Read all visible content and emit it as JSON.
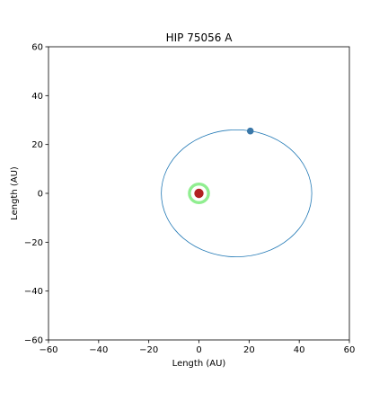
{
  "chart_data": {
    "type": "scatter",
    "title": "HIP 75056 A",
    "xlabel": "Length (AU)",
    "ylabel": "Length (AU)",
    "xlim": [
      -60,
      60
    ],
    "ylim": [
      -60,
      60
    ],
    "xticks": [
      -60,
      -40,
      -20,
      0,
      20,
      40,
      60
    ],
    "yticks": [
      -60,
      -40,
      -20,
      0,
      20,
      40,
      60
    ],
    "xtick_labels": [
      "−60",
      "−40",
      "−20",
      "0",
      "20",
      "40",
      "60"
    ],
    "ytick_labels": [
      "−60",
      "−40",
      "−20",
      "0",
      "20",
      "40",
      "60"
    ],
    "grid": false,
    "star": {
      "x": 0,
      "y": 0,
      "color": "#b22222"
    },
    "habitable_zone": {
      "center_x": 0,
      "center_y": 0,
      "inner_radius": 3.2,
      "outer_radius": 4.4,
      "color": "#90ee90"
    },
    "orbit": {
      "center_x": 15,
      "center_y": 0,
      "semi_major": 30,
      "semi_minor": 26,
      "color": "#1f77b4"
    },
    "planet": {
      "x": 20.5,
      "y": 25.5,
      "color": "#3a77a8"
    }
  }
}
